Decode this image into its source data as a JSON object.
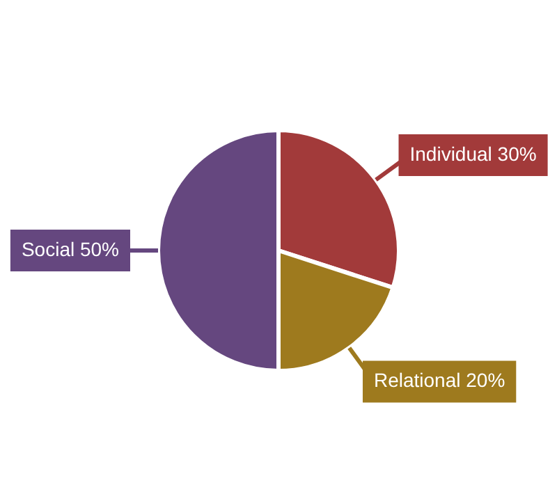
{
  "chart_data": {
    "type": "pie",
    "categories": [
      "Individual",
      "Relational",
      "Social"
    ],
    "values": [
      30,
      20,
      50
    ],
    "value_labels": [
      "30%",
      "20%",
      "50%"
    ],
    "colors": [
      "#a23a3a",
      "#9e7a1e",
      "#65477f"
    ],
    "legend": false
  }
}
